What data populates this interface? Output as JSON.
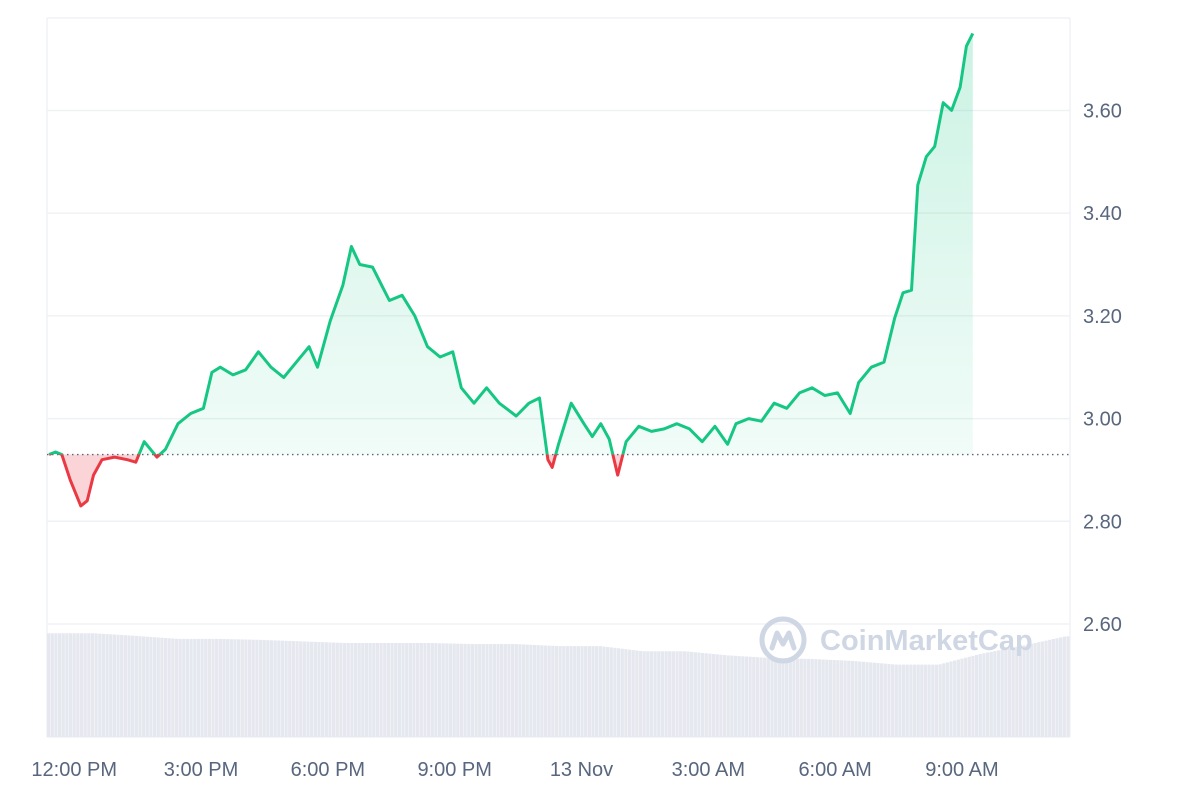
{
  "colors": {
    "up": "#16c784",
    "down": "#ea3943",
    "grid": "#eff2f5",
    "axis_text": "#58667e",
    "volume": "#e5e8ef",
    "watermark": "#cfd6e4"
  },
  "watermark": {
    "text": "CoinMarketCap",
    "icon": "coinmarketcap-logo-icon"
  },
  "chart_data": {
    "type": "area",
    "baseline": 2.93,
    "y_ticks": [
      "3.60",
      "3.40",
      "3.20",
      "3.00",
      "2.80",
      "2.60"
    ],
    "ylim": [
      2.38,
      3.78
    ],
    "x_ticks": [
      "12:00 PM",
      "3:00 PM",
      "6:00 PM",
      "9:00 PM",
      "13 Nov",
      "3:00 AM",
      "6:00 AM",
      "9:00 AM"
    ],
    "x_tick_hours": [
      0,
      3,
      6,
      9,
      12,
      15,
      18,
      21
    ],
    "xlim_hours": [
      -0.1,
      24.1
    ],
    "grid": true,
    "price_series": [
      [
        -0.05,
        2.93
      ],
      [
        0.1,
        2.935
      ],
      [
        0.25,
        2.93
      ],
      [
        0.45,
        2.88
      ],
      [
        0.7,
        2.83
      ],
      [
        0.85,
        2.84
      ],
      [
        1.0,
        2.89
      ],
      [
        1.2,
        2.92
      ],
      [
        1.5,
        2.925
      ],
      [
        1.8,
        2.92
      ],
      [
        2.0,
        2.915
      ],
      [
        2.2,
        2.955
      ],
      [
        2.5,
        2.925
      ],
      [
        2.7,
        2.94
      ],
      [
        3.0,
        2.99
      ],
      [
        3.3,
        3.01
      ],
      [
        3.6,
        3.02
      ],
      [
        3.8,
        3.09
      ],
      [
        4.0,
        3.1
      ],
      [
        4.3,
        3.085
      ],
      [
        4.6,
        3.095
      ],
      [
        4.9,
        3.13
      ],
      [
        5.2,
        3.1
      ],
      [
        5.5,
        3.08
      ],
      [
        5.8,
        3.11
      ],
      [
        6.1,
        3.14
      ],
      [
        6.3,
        3.1
      ],
      [
        6.6,
        3.19
      ],
      [
        6.9,
        3.26
      ],
      [
        7.1,
        3.335
      ],
      [
        7.3,
        3.3
      ],
      [
        7.6,
        3.295
      ],
      [
        8.0,
        3.23
      ],
      [
        8.3,
        3.24
      ],
      [
        8.6,
        3.2
      ],
      [
        8.9,
        3.14
      ],
      [
        9.2,
        3.12
      ],
      [
        9.5,
        3.13
      ],
      [
        9.7,
        3.06
      ],
      [
        10.0,
        3.03
      ],
      [
        10.3,
        3.06
      ],
      [
        10.6,
        3.03
      ],
      [
        11.0,
        3.005
      ],
      [
        11.3,
        3.03
      ],
      [
        11.55,
        3.04
      ],
      [
        11.75,
        2.92
      ],
      [
        11.85,
        2.905
      ],
      [
        12.0,
        2.95
      ],
      [
        12.3,
        3.03
      ],
      [
        12.6,
        2.99
      ],
      [
        12.8,
        2.965
      ],
      [
        13.0,
        2.99
      ],
      [
        13.2,
        2.96
      ],
      [
        13.4,
        2.89
      ],
      [
        13.6,
        2.955
      ],
      [
        13.9,
        2.985
      ],
      [
        14.2,
        2.975
      ],
      [
        14.5,
        2.98
      ],
      [
        14.8,
        2.99
      ],
      [
        15.1,
        2.98
      ],
      [
        15.4,
        2.955
      ],
      [
        15.7,
        2.985
      ],
      [
        16.0,
        2.95
      ],
      [
        16.2,
        2.99
      ],
      [
        16.5,
        3.0
      ],
      [
        16.8,
        2.995
      ],
      [
        17.1,
        3.03
      ],
      [
        17.4,
        3.02
      ],
      [
        17.7,
        3.05
      ],
      [
        18.0,
        3.06
      ],
      [
        18.3,
        3.045
      ],
      [
        18.6,
        3.05
      ],
      [
        18.9,
        3.01
      ],
      [
        19.1,
        3.07
      ],
      [
        19.4,
        3.1
      ],
      [
        19.7,
        3.11
      ],
      [
        19.95,
        3.195
      ],
      [
        20.15,
        3.245
      ],
      [
        20.35,
        3.25
      ],
      [
        20.5,
        3.455
      ],
      [
        20.7,
        3.51
      ],
      [
        20.9,
        3.53
      ],
      [
        21.1,
        3.615
      ],
      [
        21.3,
        3.6
      ],
      [
        21.5,
        3.645
      ],
      [
        21.65,
        3.725
      ],
      [
        21.8,
        3.75
      ]
    ],
    "volume_series": [
      [
        0,
        2.582
      ],
      [
        1,
        2.582
      ],
      [
        2,
        2.577
      ],
      [
        3,
        2.571
      ],
      [
        4,
        2.571
      ],
      [
        5,
        2.569
      ],
      [
        6,
        2.566
      ],
      [
        7,
        2.563
      ],
      [
        8,
        2.563
      ],
      [
        9,
        2.563
      ],
      [
        10,
        2.561
      ],
      [
        11,
        2.561
      ],
      [
        12,
        2.557
      ],
      [
        13,
        2.557
      ],
      [
        14,
        2.547
      ],
      [
        15,
        2.547
      ],
      [
        16,
        2.539
      ],
      [
        17,
        2.534
      ],
      [
        18,
        2.532
      ],
      [
        19,
        2.528
      ],
      [
        20,
        2.521
      ],
      [
        21,
        2.521
      ],
      [
        22,
        2.542
      ],
      [
        23,
        2.558
      ],
      [
        24,
        2.576
      ]
    ]
  }
}
